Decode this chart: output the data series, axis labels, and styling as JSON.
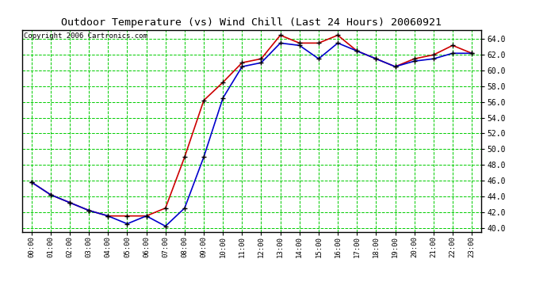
{
  "title": "Outdoor Temperature (vs) Wind Chill (Last 24 Hours) 20060921",
  "copyright": "Copyright 2006 Cartronics.com",
  "background_color": "#ffffff",
  "grid_color": "#00cc00",
  "hours": [
    "00:00",
    "01:00",
    "02:00",
    "03:00",
    "04:00",
    "05:00",
    "06:00",
    "07:00",
    "08:00",
    "09:00",
    "10:00",
    "11:00",
    "12:00",
    "13:00",
    "14:00",
    "15:00",
    "16:00",
    "17:00",
    "18:00",
    "19:00",
    "20:00",
    "21:00",
    "22:00",
    "23:00"
  ],
  "temp": [
    45.8,
    44.2,
    43.2,
    42.2,
    41.5,
    41.5,
    41.5,
    42.5,
    49.0,
    56.2,
    58.5,
    61.0,
    61.5,
    64.5,
    63.5,
    63.5,
    64.5,
    62.5,
    61.5,
    60.5,
    61.5,
    62.0,
    63.2,
    62.2
  ],
  "wind_chill": [
    45.8,
    44.2,
    43.2,
    42.2,
    41.5,
    40.5,
    41.5,
    40.2,
    42.5,
    49.0,
    56.5,
    60.5,
    61.0,
    63.5,
    63.2,
    61.5,
    63.5,
    62.5,
    61.5,
    60.5,
    61.2,
    61.5,
    62.2,
    62.2
  ],
  "temp_color": "#cc0000",
  "wind_chill_color": "#0000cc",
  "marker_color": "#000000",
  "yticks": [
    40.0,
    42.0,
    44.0,
    46.0,
    48.0,
    50.0,
    52.0,
    54.0,
    56.0,
    58.0,
    60.0,
    62.0,
    64.0
  ],
  "ymin": 39.5,
  "ymax": 65.2,
  "title_fontsize": 9.5,
  "copyright_fontsize": 6.5,
  "tick_fontsize": 6.5,
  "ytick_fontsize": 7
}
